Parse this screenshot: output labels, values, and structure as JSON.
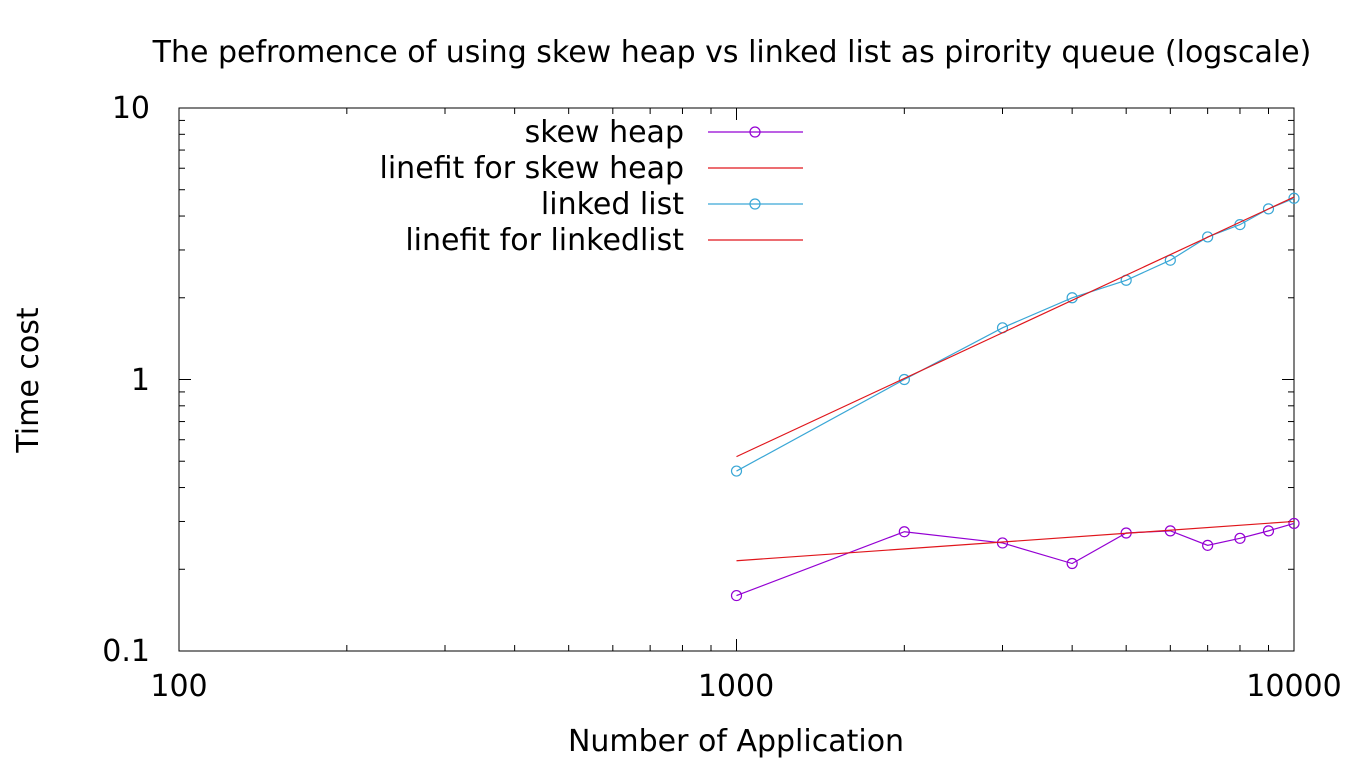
{
  "chart_data": {
    "type": "line",
    "title": "The pefromence of using skew heap vs linked list as pirority queue (logscale)",
    "xlabel": "Number of Application",
    "ylabel": "Time cost",
    "xscale": "log",
    "yscale": "log",
    "xlim": [
      100,
      10000
    ],
    "ylim": [
      0.1,
      10
    ],
    "xticks": [
      "100",
      "1000",
      "10000"
    ],
    "yticks": [
      "0.1",
      "1",
      "10"
    ],
    "grid": false,
    "legend_position": "top-center",
    "series": [
      {
        "name": "skew heap",
        "kind": "points-line",
        "color": "#9400d3",
        "x": [
          1000,
          2000,
          3000,
          4000,
          5000,
          6000,
          7000,
          8000,
          9000,
          10000
        ],
        "y": [
          0.16,
          0.275,
          0.25,
          0.21,
          0.272,
          0.277,
          0.245,
          0.26,
          0.277,
          0.295
        ]
      },
      {
        "name": "linefit for skew heap",
        "kind": "line",
        "color": "#e0161c",
        "x": [
          1000,
          10000
        ],
        "y": [
          0.215,
          0.3
        ]
      },
      {
        "name": "linked list",
        "kind": "points-line",
        "color": "#3aa7d6",
        "x": [
          1000,
          2000,
          3000,
          4000,
          5000,
          6000,
          7000,
          8000,
          9000,
          10000
        ],
        "y": [
          0.46,
          1.0,
          1.55,
          2.0,
          2.32,
          2.75,
          3.35,
          3.72,
          4.25,
          4.65
        ]
      },
      {
        "name": "linefit for linkedlist",
        "kind": "line",
        "color": "#e0161c",
        "x": [
          1000,
          10000
        ],
        "y": [
          0.52,
          4.7
        ]
      }
    ]
  }
}
